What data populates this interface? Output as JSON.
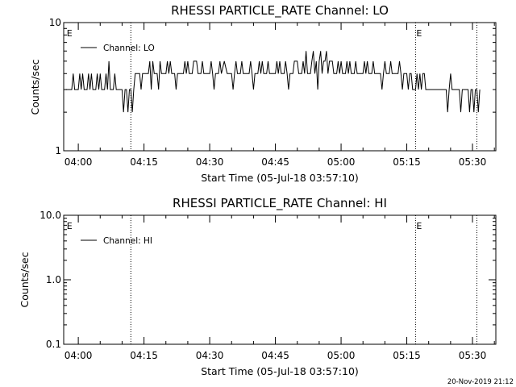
{
  "figure": {
    "timestamp": "20-Nov-2019 21:12",
    "time_reference": "05-Jul-18 03:57:10"
  },
  "chart_data": [
    {
      "type": "line",
      "title": "RHESSI PARTICLE_RATE Channel: LO",
      "xlabel": "Start Time (05-Jul-18 03:57:10)",
      "ylabel": "Counts/sec",
      "yscale": "log",
      "xlim": [
        "03:56:40",
        "05:35:20"
      ],
      "ylim": [
        1,
        10
      ],
      "x_ticks": [
        "04:00",
        "04:15",
        "04:30",
        "04:45",
        "05:00",
        "05:15",
        "05:30"
      ],
      "y_ticks": [
        {
          "value": 1,
          "label": "1"
        },
        {
          "value": 10,
          "label": "10"
        }
      ],
      "legend": {
        "position": "top-left",
        "entries": [
          "Channel: LO"
        ]
      },
      "event_markers": [
        {
          "label": "E",
          "time": "03:57:10",
          "line": false
        },
        {
          "label": "",
          "time": "04:12:00",
          "line": true
        },
        {
          "label": "E",
          "time": "05:17:00",
          "line": true
        },
        {
          "label": "",
          "time": "05:31:00",
          "line": true
        }
      ],
      "series": [
        {
          "values": [
            [
              "03:57:10",
              3
            ],
            [
              "03:58:30",
              3
            ],
            [
              "03:58:50",
              4
            ],
            [
              "03:59:10",
              3
            ],
            [
              "04:00:00",
              3
            ],
            [
              "04:00:20",
              4
            ],
            [
              "04:00:40",
              3
            ],
            [
              "04:01:00",
              4
            ],
            [
              "04:01:20",
              3
            ],
            [
              "04:02:00",
              3
            ],
            [
              "04:02:20",
              4
            ],
            [
              "04:02:40",
              3
            ],
            [
              "04:03:00",
              4
            ],
            [
              "04:03:20",
              3
            ],
            [
              "04:04:00",
              3
            ],
            [
              "04:04:20",
              4
            ],
            [
              "04:04:40",
              3
            ],
            [
              "04:05:00",
              4
            ],
            [
              "04:05:20",
              3
            ],
            [
              "04:06:00",
              3
            ],
            [
              "04:06:20",
              4
            ],
            [
              "04:06:40",
              3
            ],
            [
              "04:07:00",
              5
            ],
            [
              "04:07:20",
              3
            ],
            [
              "04:08:00",
              3
            ],
            [
              "04:08:20",
              4
            ],
            [
              "04:08:40",
              3
            ],
            [
              "04:10:00",
              3
            ],
            [
              "04:10:20",
              2
            ],
            [
              "04:10:40",
              3
            ],
            [
              "04:11:00",
              3
            ],
            [
              "04:11:20",
              2
            ],
            [
              "04:11:40",
              3
            ],
            [
              "04:12:00",
              3
            ],
            [
              "04:12:20",
              2
            ],
            [
              "04:12:40",
              3
            ],
            [
              "04:13:00",
              4
            ],
            [
              "04:14:00",
              4
            ],
            [
              "04:14:20",
              3
            ],
            [
              "04:14:40",
              4
            ],
            [
              "04:16:00",
              4
            ],
            [
              "04:16:20",
              5
            ],
            [
              "04:16:40",
              3
            ],
            [
              "04:17:00",
              5
            ],
            [
              "04:17:20",
              4
            ],
            [
              "04:18:00",
              4
            ],
            [
              "04:18:20",
              3
            ],
            [
              "04:18:40",
              5
            ],
            [
              "04:19:00",
              4
            ],
            [
              "04:20:00",
              4
            ],
            [
              "04:20:20",
              5
            ],
            [
              "04:20:40",
              4
            ],
            [
              "04:21:00",
              5
            ],
            [
              "04:21:20",
              4
            ],
            [
              "04:22:00",
              4
            ],
            [
              "04:22:20",
              3
            ],
            [
              "04:22:40",
              4
            ],
            [
              "04:24:00",
              4
            ],
            [
              "04:24:20",
              5
            ],
            [
              "04:24:40",
              4
            ],
            [
              "04:25:00",
              5
            ],
            [
              "04:25:20",
              4
            ],
            [
              "04:26:00",
              4
            ],
            [
              "04:26:20",
              5
            ],
            [
              "04:27:00",
              5
            ],
            [
              "04:27:20",
              4
            ],
            [
              "04:28:00",
              4
            ],
            [
              "04:28:20",
              5
            ],
            [
              "04:28:40",
              4
            ],
            [
              "04:30:00",
              4
            ],
            [
              "04:30:20",
              5
            ],
            [
              "04:30:40",
              4
            ],
            [
              "04:31:00",
              3
            ],
            [
              "04:31:20",
              4
            ],
            [
              "04:32:00",
              4
            ],
            [
              "04:32:20",
              5
            ],
            [
              "04:32:40",
              4
            ],
            [
              "04:33:20",
              5
            ],
            [
              "04:34:00",
              4
            ],
            [
              "04:35:00",
              4
            ],
            [
              "04:35:20",
              3
            ],
            [
              "04:35:40",
              4
            ],
            [
              "04:36:00",
              5
            ],
            [
              "04:36:20",
              4
            ],
            [
              "04:37:00",
              4
            ],
            [
              "04:37:20",
              5
            ],
            [
              "04:37:40",
              4
            ],
            [
              "04:39:00",
              4
            ],
            [
              "04:39:20",
              5
            ],
            [
              "04:39:40",
              4
            ],
            [
              "04:40:00",
              3
            ],
            [
              "04:40:20",
              4
            ],
            [
              "04:41:00",
              4
            ],
            [
              "04:41:20",
              5
            ],
            [
              "04:41:40",
              4
            ],
            [
              "04:42:00",
              5
            ],
            [
              "04:42:20",
              4
            ],
            [
              "04:43:00",
              4
            ],
            [
              "04:43:20",
              5
            ],
            [
              "04:43:40",
              4
            ],
            [
              "04:45:00",
              4
            ],
            [
              "04:45:20",
              5
            ],
            [
              "04:45:40",
              4
            ],
            [
              "04:46:00",
              5
            ],
            [
              "04:46:20",
              4
            ],
            [
              "04:47:00",
              4
            ],
            [
              "04:47:20",
              5
            ],
            [
              "04:47:40",
              4
            ],
            [
              "04:48:00",
              3
            ],
            [
              "04:48:20",
              4
            ],
            [
              "04:49:00",
              4
            ],
            [
              "04:49:20",
              5
            ],
            [
              "04:50:00",
              5
            ],
            [
              "04:50:20",
              4
            ],
            [
              "04:51:00",
              4
            ],
            [
              "04:51:20",
              5
            ],
            [
              "04:51:40",
              4
            ],
            [
              "04:52:00",
              6
            ],
            [
              "04:52:20",
              4
            ],
            [
              "04:53:00",
              4
            ],
            [
              "04:53:20",
              5
            ],
            [
              "04:53:40",
              6
            ],
            [
              "04:54:00",
              4
            ],
            [
              "04:54:20",
              5
            ],
            [
              "04:54:40",
              3
            ],
            [
              "04:55:00",
              5
            ],
            [
              "04:55:20",
              6
            ],
            [
              "04:55:40",
              4
            ],
            [
              "04:56:00",
              5
            ],
            [
              "04:56:20",
              5
            ],
            [
              "04:56:40",
              6
            ],
            [
              "04:57:00",
              4
            ],
            [
              "04:57:20",
              5
            ],
            [
              "04:58:00",
              5
            ],
            [
              "04:58:20",
              4
            ],
            [
              "04:59:00",
              4
            ],
            [
              "04:59:20",
              5
            ],
            [
              "04:59:40",
              4
            ],
            [
              "05:00:00",
              5
            ],
            [
              "05:00:20",
              4
            ],
            [
              "05:01:00",
              4
            ],
            [
              "05:01:20",
              5
            ],
            [
              "05:01:40",
              4
            ],
            [
              "05:02:00",
              5
            ],
            [
              "05:02:20",
              4
            ],
            [
              "05:03:00",
              4
            ],
            [
              "05:03:20",
              5
            ],
            [
              "05:03:40",
              4
            ],
            [
              "05:05:00",
              4
            ],
            [
              "05:05:20",
              5
            ],
            [
              "05:05:40",
              4
            ],
            [
              "05:06:00",
              5
            ],
            [
              "05:06:20",
              4
            ],
            [
              "05:07:00",
              4
            ],
            [
              "05:07:20",
              5
            ],
            [
              "05:07:40",
              4
            ],
            [
              "05:09:00",
              4
            ],
            [
              "05:09:20",
              3
            ],
            [
              "05:09:40",
              4
            ],
            [
              "05:10:00",
              5
            ],
            [
              "05:10:20",
              4
            ],
            [
              "05:11:00",
              4
            ],
            [
              "05:11:20",
              5
            ],
            [
              "05:11:40",
              4
            ],
            [
              "05:13:00",
              4
            ],
            [
              "05:13:20",
              5
            ],
            [
              "05:13:40",
              4
            ],
            [
              "05:14:00",
              3
            ],
            [
              "05:14:20",
              4
            ],
            [
              "05:15:00",
              4
            ],
            [
              "05:15:20",
              3
            ],
            [
              "05:15:40",
              4
            ],
            [
              "05:16:00",
              4
            ],
            [
              "05:16:20",
              3
            ],
            [
              "05:17:00",
              3
            ],
            [
              "05:17:20",
              4
            ],
            [
              "05:17:40",
              3
            ],
            [
              "05:18:00",
              4
            ],
            [
              "05:18:20",
              3
            ],
            [
              "05:18:40",
              4
            ],
            [
              "05:19:00",
              4
            ],
            [
              "05:19:20",
              3
            ],
            [
              "05:20:00",
              3
            ],
            [
              "05:24:00",
              3
            ],
            [
              "05:24:20",
              2
            ],
            [
              "05:24:40",
              3
            ],
            [
              "05:25:00",
              4
            ],
            [
              "05:25:20",
              3
            ],
            [
              "05:27:00",
              3
            ],
            [
              "05:27:20",
              2
            ],
            [
              "05:27:40",
              3
            ],
            [
              "05:29:00",
              3
            ],
            [
              "05:29:20",
              2
            ],
            [
              "05:29:40",
              3
            ],
            [
              "05:30:00",
              3
            ],
            [
              "05:30:20",
              2
            ],
            [
              "05:30:40",
              3
            ],
            [
              "05:31:00",
              3
            ],
            [
              "05:31:20",
              2
            ],
            [
              "05:31:40",
              3
            ]
          ]
        }
      ]
    },
    {
      "type": "line",
      "title": "RHESSI PARTICLE_RATE Channel: HI",
      "xlabel": "Start Time (05-Jul-18 03:57:10)",
      "ylabel": "Counts/sec",
      "yscale": "log",
      "xlim": [
        "03:56:40",
        "05:35:20"
      ],
      "ylim": [
        0.1,
        10
      ],
      "x_ticks": [
        "04:00",
        "04:15",
        "04:30",
        "04:45",
        "05:00",
        "05:15",
        "05:30"
      ],
      "y_ticks": [
        {
          "value": 10,
          "label": "10.0"
        },
        {
          "value": 1,
          "label": "1.0"
        },
        {
          "value": 0.1,
          "label": "0.1"
        }
      ],
      "legend": {
        "position": "top-left",
        "entries": [
          "Channel: HI"
        ]
      },
      "event_markers": [
        {
          "label": "E",
          "time": "03:57:10",
          "line": false
        },
        {
          "label": "",
          "time": "04:12:00",
          "line": true
        },
        {
          "label": "E",
          "time": "05:17:00",
          "line": true
        },
        {
          "label": "",
          "time": "05:31:00",
          "line": true
        }
      ],
      "series": [
        {
          "values": []
        }
      ]
    }
  ]
}
